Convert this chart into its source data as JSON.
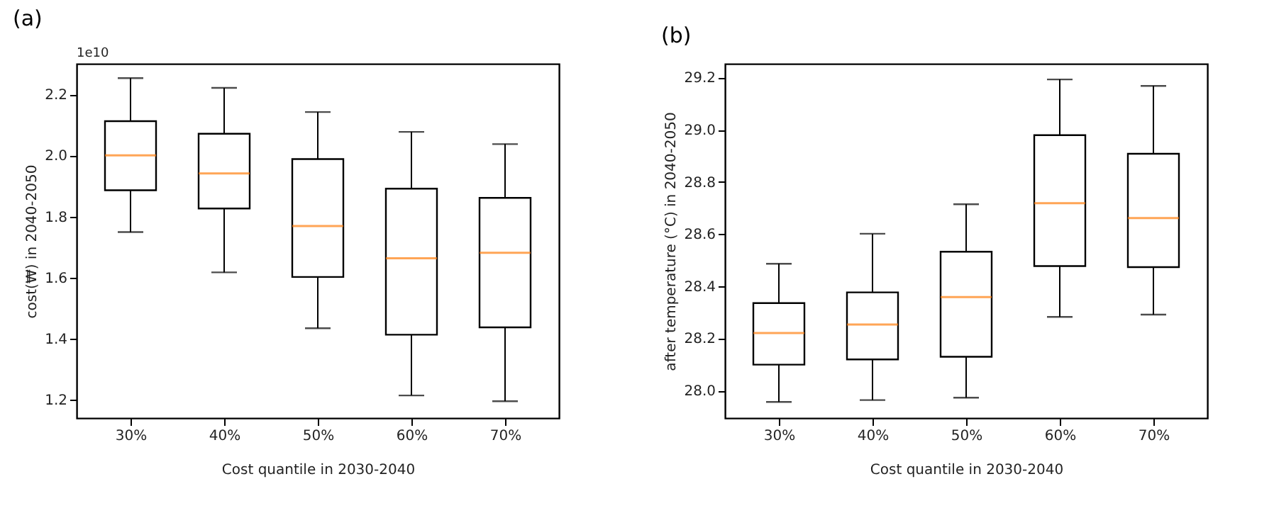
{
  "chart_data": [
    {
      "type": "box",
      "title": "(a)",
      "xlabel": "Cost quantile  in 2030-2040",
      "ylabel": "cost(₩) in 2040-2050",
      "annotations": [
        "1e10"
      ],
      "grid": false,
      "categories": [
        "30%",
        "40%",
        "50%",
        "60%",
        "70%"
      ],
      "boxes": [
        {
          "low": 1.749,
          "q1": 1.886,
          "median": 2.0,
          "q3": 2.112,
          "high": 2.253
        },
        {
          "low": 1.617,
          "q1": 1.826,
          "median": 1.941,
          "q3": 2.071,
          "high": 2.221
        },
        {
          "low": 1.434,
          "q1": 1.602,
          "median": 1.769,
          "q3": 1.988,
          "high": 2.142
        },
        {
          "low": 1.214,
          "q1": 1.413,
          "median": 1.663,
          "q3": 1.891,
          "high": 2.077
        },
        {
          "low": 1.195,
          "q1": 1.437,
          "median": 1.681,
          "q3": 1.861,
          "high": 2.037
        }
      ],
      "ylim": [
        1.14,
        2.3
      ],
      "yticks": [
        1.2,
        1.4,
        1.6,
        1.8,
        {
          "value": 2,
          "label": "2.0"
        },
        2.2
      ]
    },
    {
      "type": "box",
      "title": "(b)",
      "xlabel": "Cost quantile  in 2030-2040",
      "ylabel": "after temperature (°C) in 2040-2050",
      "grid": false,
      "categories": [
        "30%",
        "40%",
        "50%",
        "60%",
        "70%"
      ],
      "boxes": [
        {
          "low": 27.956,
          "q1": 28.099,
          "median": 28.22,
          "q3": 28.335,
          "high": 28.486
        },
        {
          "low": 27.963,
          "q1": 28.119,
          "median": 28.253,
          "q3": 28.376,
          "high": 28.601
        },
        {
          "low": 27.972,
          "q1": 28.129,
          "median": 28.358,
          "q3": 28.532,
          "high": 28.714
        },
        {
          "low": 28.282,
          "q1": 28.477,
          "median": 28.718,
          "q3": 28.979,
          "high": 29.193
        },
        {
          "low": 28.291,
          "q1": 28.473,
          "median": 28.661,
          "q3": 28.908,
          "high": 29.168
        }
      ],
      "ylim": [
        27.894,
        29.253
      ],
      "yticks": [
        {
          "value": 28,
          "label": "28.0"
        },
        28.2,
        28.4,
        28.6,
        28.8,
        {
          "value": 29,
          "label": "29.0"
        },
        29.2
      ]
    }
  ]
}
